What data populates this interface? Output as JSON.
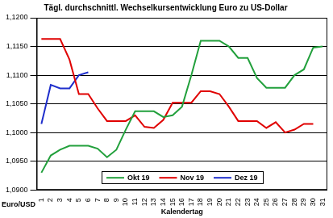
{
  "chart_data": {
    "type": "line",
    "title": "Tägl. durchschnittl. Wechselkursentwicklung Euro zu US-Dollar",
    "x_label": "Kalendertag",
    "y_label": "Euro/USD",
    "categories": [
      "1",
      "2",
      "3",
      "4",
      "5",
      "6",
      "7",
      "8",
      "9",
      "10",
      "11",
      "12",
      "13",
      "14",
      "15",
      "16",
      "17",
      "18",
      "19",
      "20",
      "21",
      "22",
      "23",
      "24",
      "25",
      "26",
      "27",
      "28",
      "29",
      "30",
      "31"
    ],
    "series": [
      {
        "name": "Okt 19",
        "color": "#22a03c",
        "values": [
          1.093,
          1.096,
          1.097,
          1.0977,
          1.0977,
          1.0977,
          1.0972,
          1.0957,
          1.097,
          1.1005,
          1.1037,
          1.1037,
          1.1037,
          1.1027,
          1.103,
          1.1045,
          1.11,
          1.116,
          1.116,
          1.116,
          1.115,
          1.113,
          1.113,
          1.1095,
          1.1078,
          1.1078,
          1.1078,
          1.11,
          1.111,
          1.1148,
          1.115
        ]
      },
      {
        "name": "Nov 19",
        "color": "#e00000",
        "values": [
          1.1163,
          1.1163,
          1.1163,
          1.1127,
          1.1067,
          1.1067,
          1.1042,
          1.102,
          1.102,
          1.102,
          1.103,
          1.101,
          1.1008,
          1.1022,
          1.1052,
          1.1052,
          1.1052,
          1.1072,
          1.1072,
          1.1067,
          1.1045,
          1.102,
          1.102,
          1.102,
          1.1008,
          1.1018,
          1.1,
          1.1005,
          1.1015,
          1.1015,
          null
        ]
      },
      {
        "name": "Dez 19",
        "color": "#1f2fcc",
        "values": [
          1.1015,
          1.1083,
          1.1077,
          1.1077,
          1.11,
          1.1105,
          null,
          null,
          null,
          null,
          null,
          null,
          null,
          null,
          null,
          null,
          null,
          null,
          null,
          null,
          null,
          null,
          null,
          null,
          null,
          null,
          null,
          null,
          null,
          null,
          null
        ]
      }
    ],
    "ylim": [
      1.09,
      1.12
    ],
    "yticks": [
      {
        "value": 1.09,
        "label": "1,0900"
      },
      {
        "value": 1.095,
        "label": "1,0950"
      },
      {
        "value": 1.1,
        "label": "1,1000"
      },
      {
        "value": 1.105,
        "label": "1,1050"
      },
      {
        "value": 1.11,
        "label": "1,1100"
      },
      {
        "value": 1.115,
        "label": "1,1150"
      },
      {
        "value": 1.12,
        "label": "1,1200"
      }
    ],
    "grid": true,
    "legend": "bottom"
  }
}
